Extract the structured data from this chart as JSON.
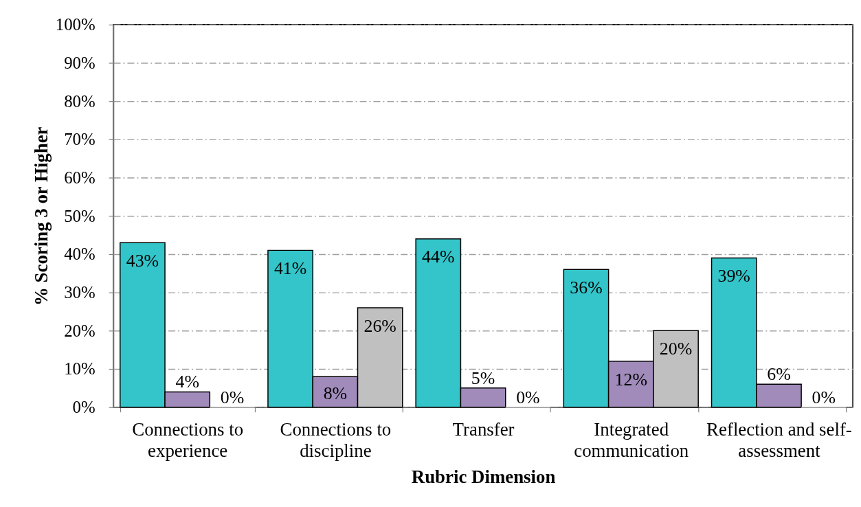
{
  "chart_data": {
    "type": "bar",
    "xlabel": "Rubric Dimension",
    "ylabel": "% Scoring 3 or Higher",
    "categories": [
      "Connections to experience",
      "Connections to discipline",
      "Transfer",
      "Integrated communication",
      "Reflection and self-assessment"
    ],
    "series": [
      {
        "color": "#33c5c9",
        "values": [
          43,
          41,
          44,
          36,
          39
        ],
        "value_labels": [
          "43%",
          "41%",
          "44%",
          "36%",
          "39%"
        ]
      },
      {
        "color": "#a08bba",
        "values": [
          4,
          8,
          5,
          12,
          6
        ],
        "value_labels": [
          "4%",
          "8%",
          "5%",
          "12%",
          "6%"
        ]
      },
      {
        "color": "#c0c0c0",
        "values": [
          0,
          26,
          0,
          20,
          0
        ],
        "value_labels": [
          "0%",
          "26%",
          "0%",
          "20%",
          "0%"
        ]
      }
    ],
    "ylim": [
      0,
      100
    ],
    "yticks": [
      {
        "value": 0,
        "label": "0%"
      },
      {
        "value": 10,
        "label": "10%"
      },
      {
        "value": 20,
        "label": "20%"
      },
      {
        "value": 30,
        "label": "30%"
      },
      {
        "value": 40,
        "label": "40%"
      },
      {
        "value": 50,
        "label": "50%"
      },
      {
        "value": 60,
        "label": "60%"
      },
      {
        "value": 70,
        "label": "70%"
      },
      {
        "value": 80,
        "label": "80%"
      },
      {
        "value": 90,
        "label": "90%"
      },
      {
        "value": 100,
        "label": "100%"
      }
    ],
    "grid": "y"
  }
}
